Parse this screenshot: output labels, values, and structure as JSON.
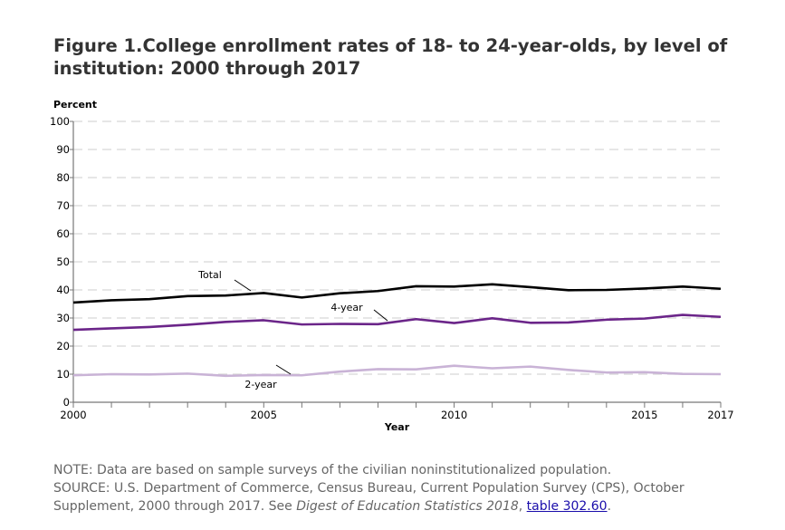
{
  "chart_data": {
    "type": "line",
    "title": "Figure 1.College enrollment rates of 18- to 24-year-olds, by level of institution: 2000 through 2017",
    "xlabel": "Year",
    "ylabel": "Percent",
    "xlim": [
      2000,
      2017
    ],
    "ylim": [
      0,
      100
    ],
    "yticks": [
      0,
      10,
      20,
      30,
      40,
      50,
      60,
      70,
      80,
      90,
      100
    ],
    "xtick_labels": [
      2000,
      2005,
      2010,
      2015,
      2017
    ],
    "grid": "horizontal dashed",
    "x": [
      2000,
      2001,
      2002,
      2003,
      2004,
      2005,
      2006,
      2007,
      2008,
      2009,
      2010,
      2011,
      2012,
      2013,
      2014,
      2015,
      2016,
      2017
    ],
    "series": [
      {
        "name": "Total",
        "color": "#000000",
        "values": [
          35.5,
          36.3,
          36.7,
          37.8,
          38.0,
          38.9,
          37.3,
          38.8,
          39.6,
          41.3,
          41.2,
          42.0,
          41.0,
          39.9,
          40.0,
          40.5,
          41.2,
          40.4
        ]
      },
      {
        "name": "4-year",
        "color": "#6b2589",
        "values": [
          25.8,
          26.3,
          26.8,
          27.6,
          28.6,
          29.2,
          27.7,
          27.9,
          27.8,
          29.6,
          28.2,
          29.9,
          28.3,
          28.4,
          29.4,
          29.8,
          31.1,
          30.4
        ]
      },
      {
        "name": "2-year",
        "color": "#c9b3d6",
        "values": [
          9.6,
          10.0,
          9.9,
          10.2,
          9.4,
          9.7,
          9.6,
          10.9,
          11.8,
          11.7,
          13.0,
          12.1,
          12.7,
          11.5,
          10.6,
          10.7,
          10.1,
          10.0
        ]
      }
    ]
  },
  "notes": {
    "note": "NOTE: Data are based on sample surveys of the civilian noninstitutionalized population.",
    "source_prefix": "SOURCE: U.S. Department of Commerce, Census Bureau, Current Population Survey (CPS), October Supplement, 2000 through 2017. See ",
    "source_italic": "Digest of Education Statistics 2018",
    "source_sep": ", ",
    "link_text": "table 302.60",
    "source_end": "."
  }
}
